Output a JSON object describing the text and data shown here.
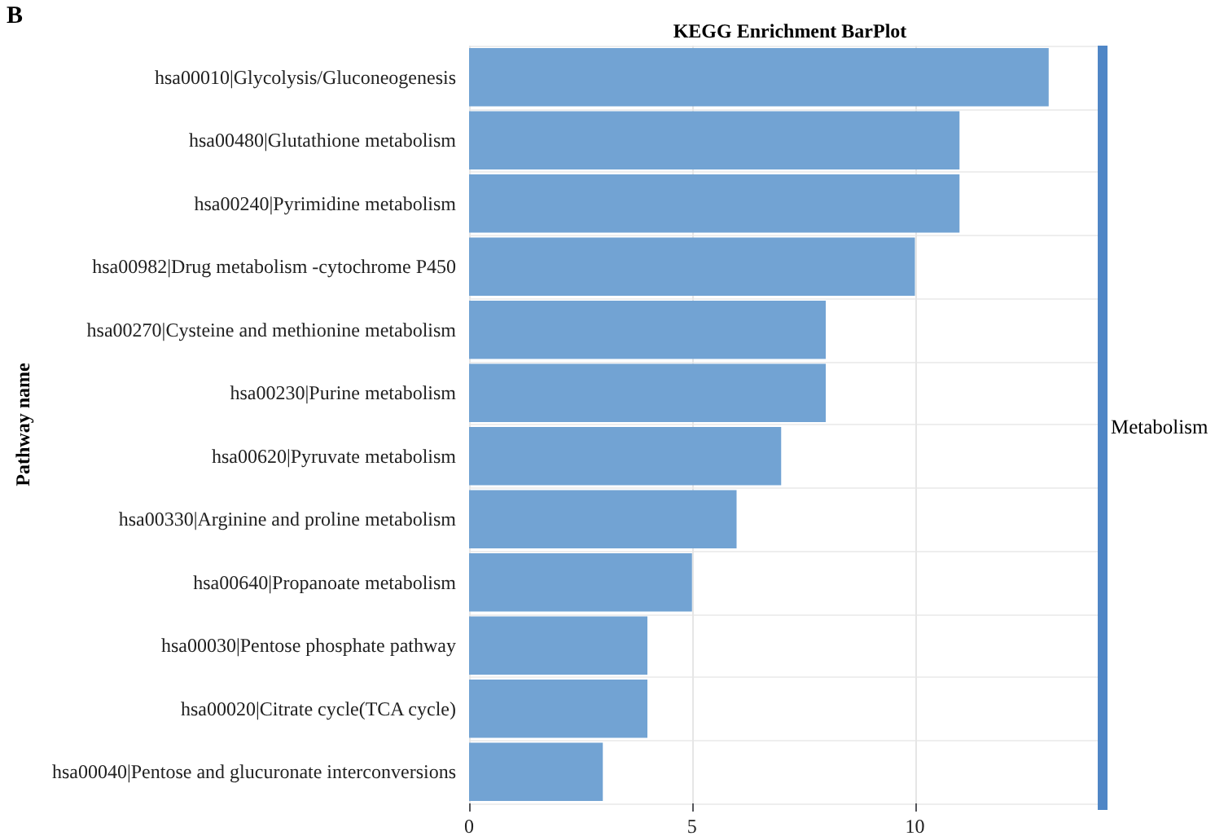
{
  "chart_data": {
    "type": "bar",
    "orientation": "horizontal",
    "title": "KEGG Enrichment BarPlot",
    "ylabel": "Pathway name",
    "categories": [
      "hsa00010|Glycolysis/Gluconeogenesis",
      "hsa00480|Glutathione metabolism",
      "hsa00240|Pyrimidine metabolism",
      "hsa00982|Drug metabolism -cytochrome P450",
      "hsa00270|Cysteine and methionine metabolism",
      "hsa00230|Purine metabolism",
      "hsa00620|Pyruvate metabolism",
      "hsa00330|Arginine and proline metabolism",
      "hsa00640|Propanoate metabolism",
      "hsa00030|Pentose phosphate pathway",
      "hsa00020|Citrate cycle(TCA cycle)",
      "hsa00040|Pentose and glucuronate interconversions"
    ],
    "values": [
      13,
      11,
      11,
      10,
      8,
      8,
      7,
      6,
      5,
      4,
      4,
      3
    ],
    "color": "#72a3d3",
    "xlim": [
      0,
      14.1
    ],
    "xticks": [
      0,
      5,
      10
    ],
    "grid": true,
    "annotations": [
      "B",
      "Metabolism"
    ]
  }
}
